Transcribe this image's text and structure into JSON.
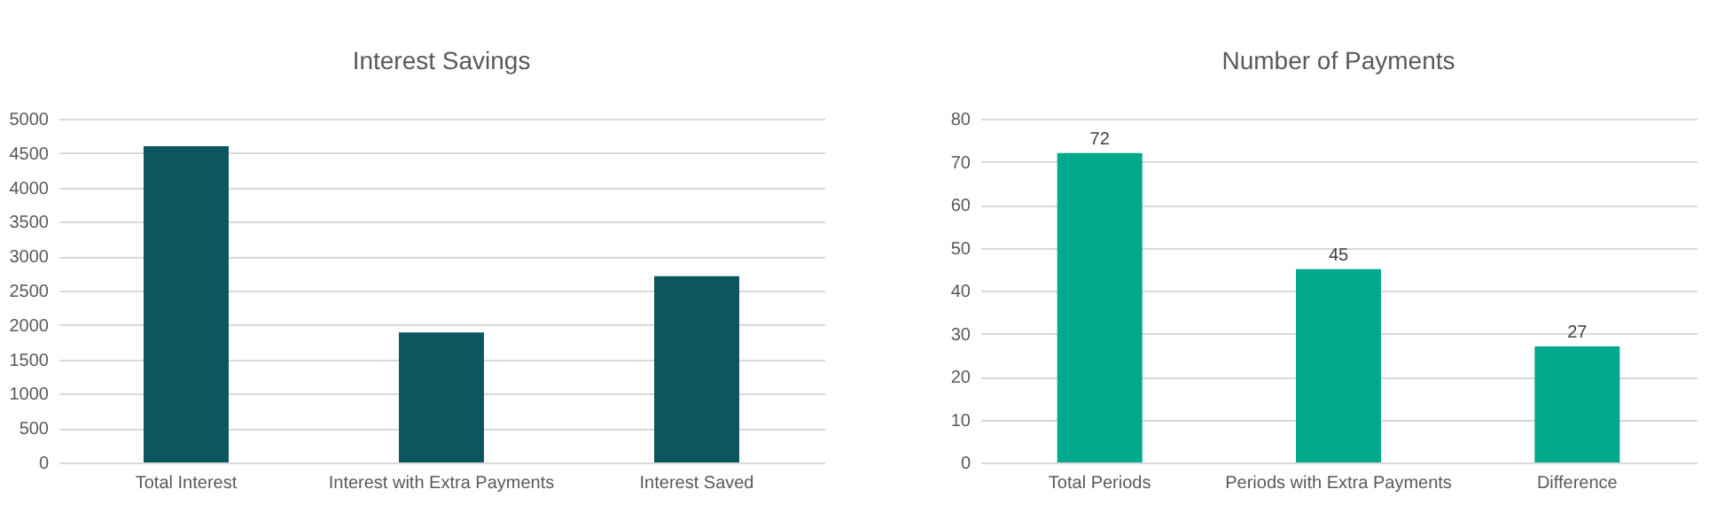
{
  "chart_data": [
    {
      "type": "bar",
      "title": "Interest Savings",
      "categories": [
        "Total Interest",
        "Interest with Extra Payments",
        "Interest Saved"
      ],
      "values": [
        4600,
        1890,
        2710
      ],
      "color": "#0c5660",
      "ylim": [
        0,
        5000
      ],
      "yticks": [
        0,
        500,
        1000,
        1500,
        2000,
        2500,
        3000,
        3500,
        4000,
        4500,
        5000
      ],
      "grid": "y"
    },
    {
      "type": "bar",
      "title": "Number of Payments",
      "categories": [
        "Total Periods",
        "Periods with Extra Payments",
        "Difference"
      ],
      "values": [
        72,
        45,
        27
      ],
      "color": "#00a98b",
      "ylim": [
        0,
        80
      ],
      "yticks": [
        0,
        10,
        20,
        30,
        40,
        50,
        60,
        70,
        80
      ],
      "grid": "y",
      "data_labels": true
    }
  ]
}
